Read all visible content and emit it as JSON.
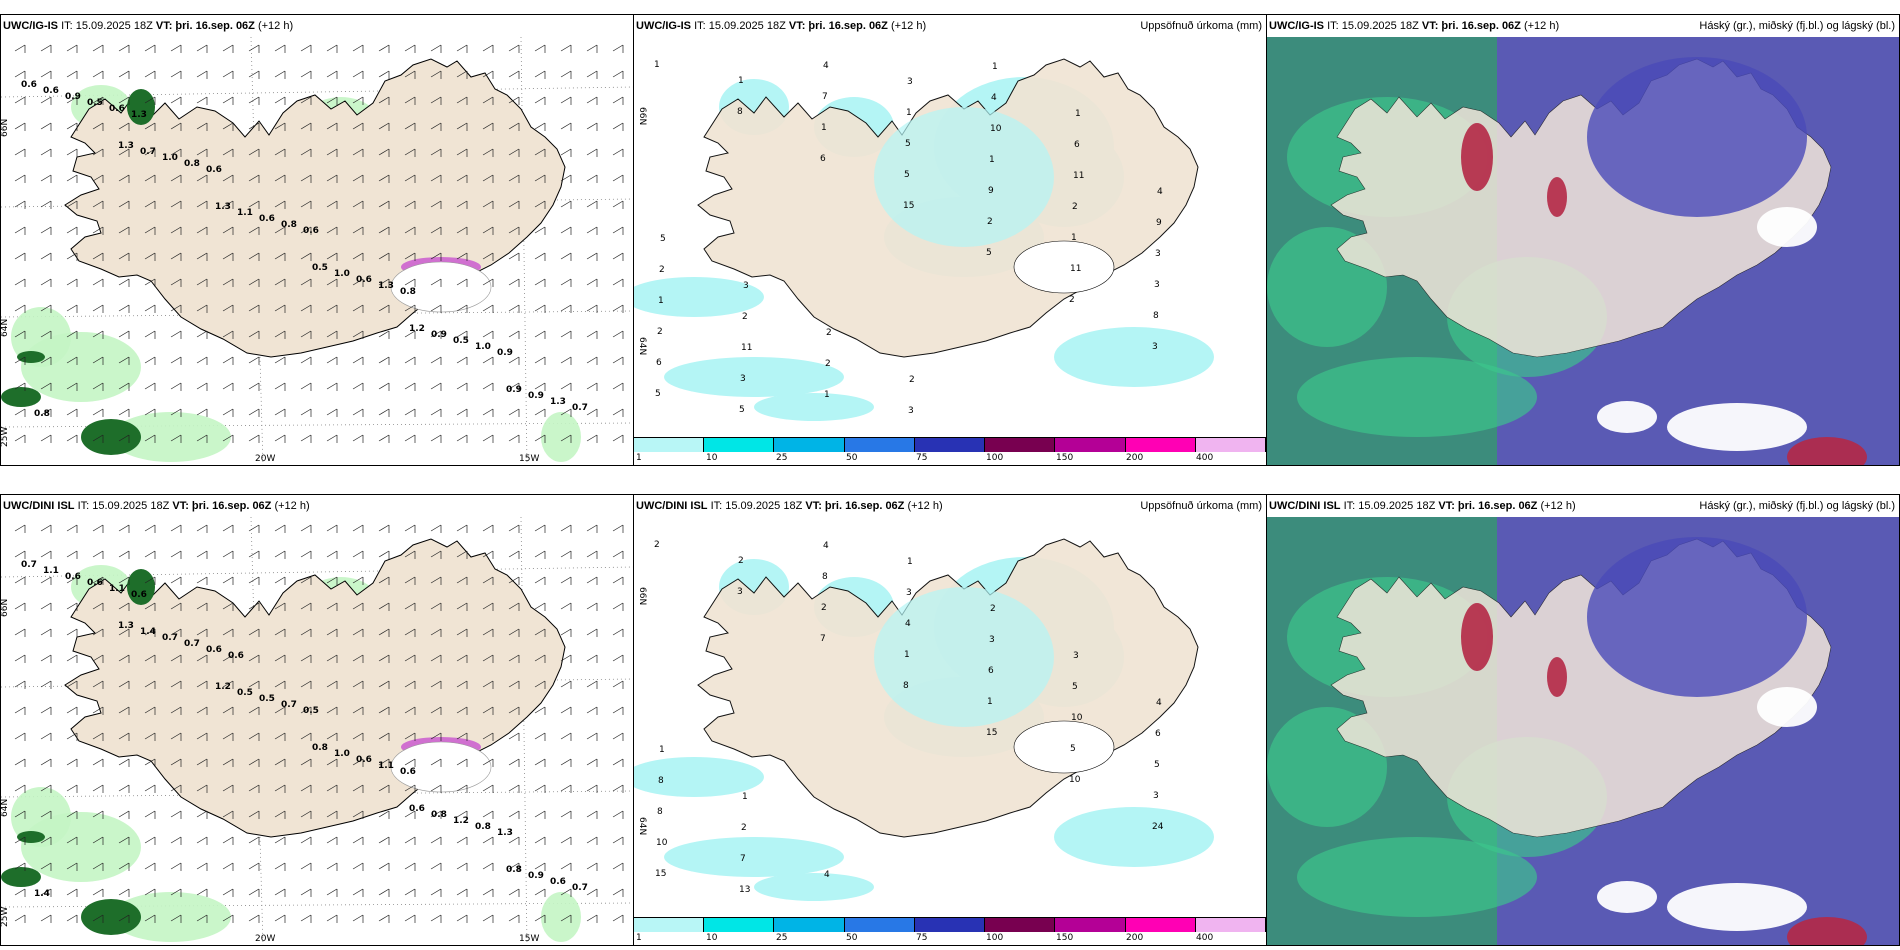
{
  "rows": [
    {
      "model": "UWC/IG-IS",
      "it": "IT: 15.09.2025 18Z",
      "vt": "VT: þri. 16.sep. 06Z",
      "lead": "(+12 h)",
      "wind_values": [
        "0.6",
        "1.3",
        "1.3",
        "0.5",
        "1.2",
        "0.9",
        "0.6",
        "0.7",
        "1.1",
        "1.0",
        "0.9",
        "0.9",
        "0.9",
        "1.0",
        "0.6",
        "0.6",
        "0.5",
        "1.3",
        "0.5",
        "0.8",
        "0.8",
        "1.3",
        "1.0",
        "0.7",
        "0.6",
        "0.6",
        "0.6",
        "0.8",
        "0.9",
        "0.8",
        "1.3"
      ],
      "precip_values": [
        "1",
        "8",
        "6",
        "15",
        "5",
        "2",
        "3",
        "5",
        "1",
        "1",
        "5",
        "2",
        "11",
        "8",
        "6",
        "5",
        "7",
        "5",
        "9",
        "1",
        "3",
        "2",
        "3",
        "4",
        "1",
        "1",
        "2",
        "3",
        "1",
        "11",
        "1",
        "3",
        "10",
        "11",
        "9",
        "2",
        "2",
        "2",
        "3",
        "4",
        "6",
        "4",
        "5",
        "3",
        "2",
        "2",
        "1",
        "1"
      ]
    },
    {
      "model": "UWC/DINI ISL",
      "it": "IT: 15.09.2025 18Z",
      "vt": "VT: þri. 16.sep. 06Z",
      "lead": "(+12 h)",
      "wind_values": [
        "0.7",
        "1.3",
        "1.2",
        "0.8",
        "0.6",
        "0.8",
        "1.1",
        "1.4",
        "0.5",
        "1.0",
        "0.8",
        "0.9",
        "0.6",
        "0.7",
        "0.5",
        "0.6",
        "1.2",
        "0.6",
        "0.6",
        "0.7",
        "0.7",
        "1.1",
        "0.8",
        "0.7",
        "1.1",
        "0.6",
        "0.5",
        "0.6",
        "1.3",
        "1.4",
        "0.6",
        "0.6"
      ],
      "precip_values": [
        "2",
        "3",
        "7",
        "8",
        "15",
        "10",
        "24",
        "15",
        "2",
        "2",
        "1",
        "1",
        "5",
        "3",
        "10",
        "13",
        "8",
        "4",
        "6",
        "10",
        "5",
        "8",
        "7",
        "4",
        "3",
        "3",
        "5",
        "6",
        "8",
        "2",
        "4",
        "1",
        "2",
        "3",
        "4",
        "1",
        "1"
      ]
    }
  ],
  "precip_title": "Uppsöfnuð úrkoma (mm)",
  "cloud_title": "Háský (gr.), miðský (fj.bl.) og lágský (bl.)",
  "colorbar": {
    "labels": [
      "1",
      "10",
      "25",
      "50",
      "75",
      "100",
      "150",
      "200",
      "400"
    ],
    "colors": [
      "#b8f6f6",
      "#00e6e6",
      "#00b4e6",
      "#2878e6",
      "#2832b4",
      "#780050",
      "#b40096",
      "#ff00b4",
      "#f0b4f0"
    ]
  },
  "axis_labels": {
    "lat66": "66N",
    "lat64": "64N",
    "lat63": "25W",
    "lon20": "20W",
    "lon15": "15W"
  },
  "colors": {
    "land": "#f0e4d4",
    "precip_light": "#b4f5f5",
    "green_light": "#c4f5c4",
    "green_dark": "#1e6e2a",
    "magenta": "#d070d0",
    "cloud_purple": "#5a5ab4",
    "cloud_teal": "#3c8c7c",
    "cloud_green": "#3cc88c",
    "cloud_red": "#b42846"
  }
}
